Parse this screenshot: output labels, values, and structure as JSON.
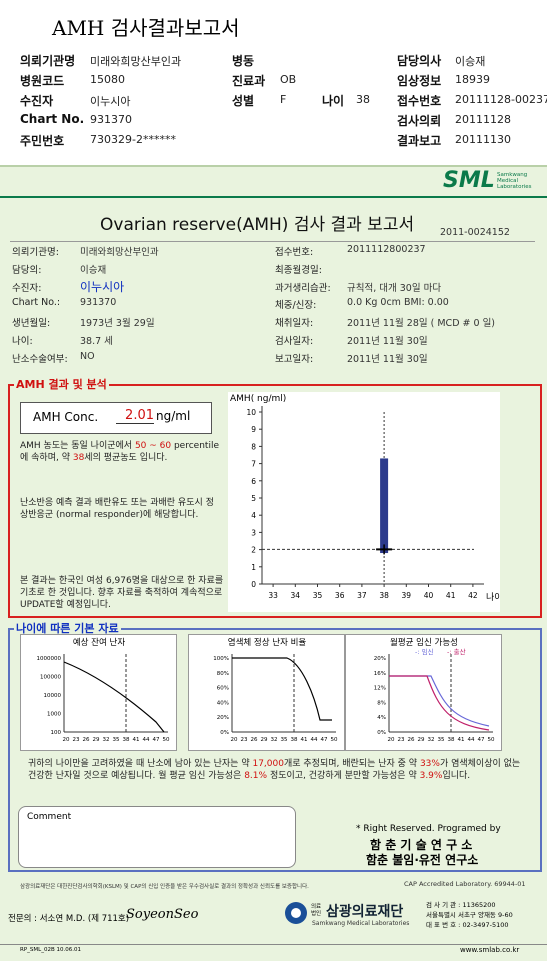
{
  "header": {
    "title": "AMH 검사결과보고서",
    "rows": [
      [
        {
          "label": "의뢰기관명",
          "value": "미래와희망산부인과"
        },
        {
          "label": "병동"
        },
        {
          "label": "담당의사",
          "value": "이승재"
        }
      ],
      [
        {
          "label": "병원코드",
          "value": "15080"
        },
        {
          "label": "진료과",
          "value": "OB"
        },
        {
          "label": "임상정보",
          "value": "18939"
        }
      ],
      [
        {
          "label": "수진자",
          "value": "이누시아"
        },
        {
          "label": "성별",
          "value": "F"
        },
        {
          "label": "나이",
          "value": "38"
        },
        {
          "label": "접수번호",
          "value": "20111128-00237"
        }
      ],
      [
        {
          "label": "Chart No.",
          "value": "931370"
        },
        {
          "label": "검사의뢰",
          "value": "20111128"
        }
      ],
      [
        {
          "label": "주민번호",
          "value": "730329-2******"
        },
        {
          "label": "결과보고",
          "value": "20111130"
        }
      ]
    ]
  },
  "report": {
    "logo": "SML",
    "logo_sub": "Samkwang Medical Laboratories",
    "title": "Ovarian reserve(AMH) 검사 결과 보고서",
    "number": "2011-0024152",
    "left": [
      {
        "label": "의뢰기관명:",
        "value": "미래와희망산부인과"
      },
      {
        "label": "담당의:",
        "value": "이승재"
      },
      {
        "label": "수진자:",
        "value": "이누시아"
      },
      {
        "label": "Chart No.:",
        "value": "931370"
      },
      {
        "label": "생년월일:",
        "value": "1973년 3월 29일"
      },
      {
        "label": "나이:",
        "value": "38.7 세"
      },
      {
        "label": "난소수술여부:",
        "value": "NO"
      }
    ],
    "right": [
      {
        "label": "접수번호:",
        "value": "2011112800237"
      },
      {
        "label": "최종월경일:"
      },
      {
        "label": "과거생리습관:",
        "value": "규칙적, 대개  30일 마다"
      },
      {
        "label": "체중/신장:",
        "value": "0.0 Kg      0cm   BMI:   0.00"
      },
      {
        "label": "채취일자:",
        "value": "2011년 11월 28일 ( MCD # 0 일)"
      },
      {
        "label": "검사일자:",
        "value": "2011년 11월 30일"
      },
      {
        "label": "보고일자:",
        "value": "2011년 11월 30일"
      }
    ]
  },
  "analysis": {
    "heading": "AMH 결과 및 분석",
    "conc_label": "AMH Conc.",
    "conc_value": 2.01,
    "conc_unit": "ng/ml",
    "para1": [
      "AMH 농도는 동일 나이군에서 ",
      "50 ~ 60",
      " percentile에 속하며, 약 ",
      "38",
      "세의 평균농도 입니다."
    ],
    "para2": "난소반응 예측 결과 배란유도 또는 과배란 유도시 정상반응군 (normal responder)에 해당합니다.",
    "para3": "본 결과는 한국인 여성 6,976명을 대상으로 한 자료를 기초로 한 것입니다. 향후 자료를 축적하여 계속적으로 UPDATE할 예정입니다.",
    "chart": {
      "y_label": "AMH( ng/ml)",
      "x_label": "나이",
      "ylim": [
        0,
        10
      ],
      "yticks": [
        0,
        1,
        2,
        3,
        4,
        5,
        6,
        7,
        8,
        9,
        10
      ],
      "xlim": [
        32.5,
        42.5
      ],
      "xticks": [
        33,
        34,
        35,
        36,
        37,
        38,
        39,
        40,
        41,
        42
      ],
      "box_age": 38,
      "box": [
        1.8,
        7.3
      ]
    }
  },
  "basics": {
    "heading": "나이에 따른 기본 자료",
    "charts": [
      {
        "title": "예상 잔여 난자",
        "yticks": [
          "1000000",
          "100000",
          "10000",
          "1000",
          "100"
        ],
        "xticks": [
          "20",
          "23",
          "26",
          "29",
          "32",
          "35",
          "38",
          "41",
          "44",
          "47",
          "50"
        ]
      },
      {
        "title": "염색체 정상 난자 비율",
        "yticks": [
          "100%",
          "80%",
          "60%",
          "40%",
          "20%",
          "0%"
        ],
        "xticks": [
          "20",
          "23",
          "26",
          "29",
          "32",
          "35",
          "38",
          "41",
          "44",
          "47",
          "50"
        ]
      },
      {
        "title": "월평균 임신 가능성",
        "legend": [
          "-: 임신",
          "-: 출산"
        ],
        "yticks": [
          "20%",
          "16%",
          "12%",
          "8%",
          "4%",
          "0%"
        ],
        "xticks": [
          "20",
          "23",
          "26",
          "29",
          "32",
          "35",
          "38",
          "41",
          "44",
          "47",
          "50"
        ]
      }
    ],
    "text": [
      "귀하의 나이만을 고려하였을 때 난소에 남아 있는 난자는 약 ",
      "17,000",
      "개로 추정되며, 배란되는 난자 중 약 ",
      "33%",
      "가 염색체이상이 없는 건강한 난자일 것으로 예상됩니다. 월 평균 임신 가능성은 ",
      "8.1%",
      " 정도이고, 건강하게 분만할 가능성은 약 ",
      "3.9%",
      "입니다."
    ],
    "comment": "Comment",
    "rights": "* Right Reserved. Programed by",
    "org1": "함 춘  기 술  연 구 소",
    "org2": "함춘 불임·유전 연구소"
  },
  "footer": {
    "note": "삼광의료재단은 대한진단검사의학회(KSLM) 및 CAP의 신입 인증을 받은 우수검사실로 결과의 정확성과 신뢰도를 보증합니다.",
    "cap": "CAP Accredited Laboratory. 69944-01",
    "doctor": "전문의 : 서소연 M.D. (제 711호)",
    "signature": "SoyeonSeo",
    "org_small": "의료법인",
    "org": "삼광의료재단",
    "org_en": "Samkwang Medical Laboratories",
    "contact": [
      "검 사 기 관 : 11365200",
      "서울특별시 서초구 양재동 9-60",
      "대 표 번 호 : 02-3497-5100"
    ],
    "code": "RP_SML_02B 10.06.01",
    "url": "www.smlab.co.kr"
  }
}
